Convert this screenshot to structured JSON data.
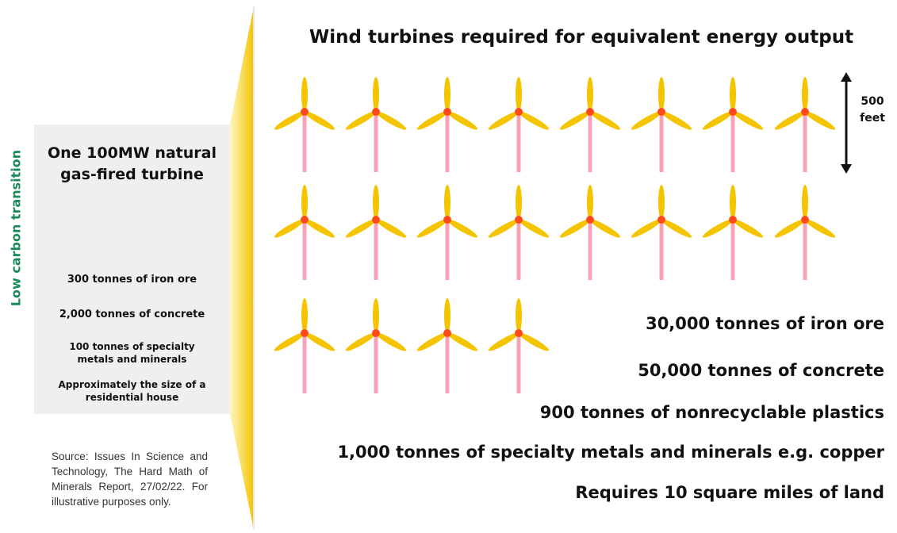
{
  "side_label": "Low carbon transition",
  "left_panel": {
    "title": "One 100MW natural gas-fired turbine",
    "items": [
      "300 tonnes of iron ore",
      "2,000 tonnes of concrete",
      "100 tonnes of specialty metals and minerals",
      "Approximately the size of a residential house"
    ]
  },
  "source": "Source: Issues In Science and Technology, The Hard Math of Minerals Report, 27/02/22. For illustrative purposes only.",
  "right_panel": {
    "title": "Wind turbines required for equivalent energy output",
    "scale_label": "500 feet",
    "items": [
      "30,000 tonnes of iron ore",
      "50,000 tonnes of concrete",
      "900 tonnes of nonrecyclable plastics",
      "1,000 tonnes of specialty metals and minerals e.g. copper",
      "Requires 10 square miles of land"
    ]
  }
}
